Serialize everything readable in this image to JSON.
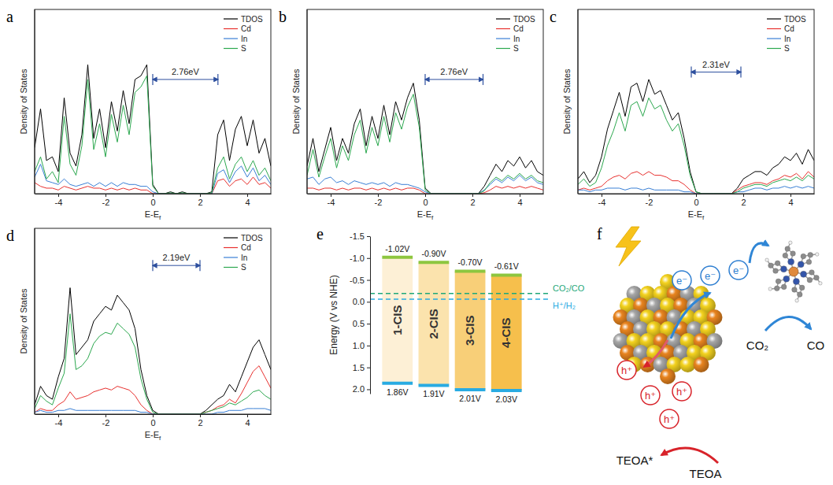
{
  "chart_data": [
    {
      "type": "line",
      "panel": "a",
      "xlabel": "E-Ef",
      "ylabel": "Density of States",
      "x": [
        -5,
        -4.75,
        -4.5,
        -4.25,
        -4,
        -3.75,
        -3.5,
        -3.25,
        -3,
        -2.75,
        -2.5,
        -2.25,
        -2,
        -1.75,
        -1.5,
        -1.25,
        -1,
        -0.75,
        -0.5,
        -0.25,
        0,
        0.25,
        0.5,
        0.75,
        1,
        1.25,
        1.5,
        1.75,
        2,
        2.25,
        2.5,
        2.75,
        3,
        3.25,
        3.5,
        3.75,
        4,
        4.25,
        4.5,
        4.75,
        5
      ],
      "xlim": [
        -5,
        5
      ],
      "xticks": [
        -4,
        -2,
        0,
        2,
        4
      ],
      "ylim": [
        0,
        10
      ],
      "tick_labels": "x",
      "legend": "upper right",
      "series": [
        {
          "name": "TDOS",
          "color": "#000000",
          "values": [
            2.5,
            4.6,
            1.8,
            2.0,
            1.2,
            5.2,
            2.2,
            1.5,
            3.2,
            7.0,
            3.0,
            4.6,
            2.5,
            5.0,
            3.4,
            5.6,
            3.8,
            6.2,
            6.4,
            7.0,
            0.5,
            0,
            0,
            0.1,
            0,
            0.1,
            0,
            0,
            0,
            0,
            0.1,
            3.2,
            4.0,
            1.8,
            3.5,
            4.2,
            2.6,
            4.0,
            2.2,
            3.0,
            1.5
          ]
        },
        {
          "name": "Cd",
          "color": "#e8312f",
          "values": [
            0.6,
            0.4,
            0.3,
            0.3,
            0.2,
            0.4,
            0.3,
            0.2,
            0.3,
            0.4,
            0.3,
            0.3,
            0.2,
            0.3,
            0.2,
            0.3,
            0.2,
            0.3,
            0.2,
            0.2,
            0,
            0,
            0,
            0,
            0,
            0,
            0,
            0,
            0,
            0,
            0,
            0.7,
            0.8,
            0.4,
            0.7,
            0.8,
            0.5,
            0.9,
            0.5,
            0.6,
            0.3
          ]
        },
        {
          "name": "In",
          "color": "#3a7fd5",
          "values": [
            0.9,
            1.6,
            0.7,
            0.6,
            0.5,
            0.8,
            0.5,
            0.4,
            0.5,
            0.6,
            0.4,
            0.6,
            0.4,
            0.6,
            0.4,
            0.6,
            0.5,
            0.5,
            0.4,
            0.4,
            0.1,
            0,
            0,
            0,
            0,
            0,
            0,
            0,
            0,
            0,
            0,
            1.1,
            1.3,
            0.6,
            1.2,
            1.5,
            0.9,
            1.4,
            0.7,
            1.0,
            0.5
          ]
        },
        {
          "name": "S",
          "color": "#2ca84f",
          "values": [
            1.2,
            2.0,
            0.8,
            1.2,
            0.6,
            4.2,
            1.6,
            1.0,
            2.6,
            6.2,
            2.4,
            3.8,
            2.0,
            4.3,
            2.8,
            4.8,
            3.2,
            5.5,
            5.8,
            6.4,
            0.4,
            0,
            0,
            0.05,
            0,
            0.05,
            0,
            0,
            0,
            0,
            0.05,
            1.4,
            2.0,
            0.8,
            1.6,
            2.0,
            1.2,
            1.8,
            1.0,
            1.4,
            0.7
          ]
        }
      ],
      "annotations": [
        {
          "text": "2.76eV",
          "start": 0,
          "end": 2.76,
          "y": 6.2
        }
      ]
    },
    {
      "type": "line",
      "panel": "b",
      "xlabel": "E-Ef",
      "ylabel": "Density of States",
      "x": [
        -5,
        -4.75,
        -4.5,
        -4.25,
        -4,
        -3.75,
        -3.5,
        -3.25,
        -3,
        -2.75,
        -2.5,
        -2.25,
        -2,
        -1.75,
        -1.5,
        -1.25,
        -1,
        -0.75,
        -0.5,
        -0.25,
        0,
        0.25,
        0.5,
        0.75,
        1,
        1.25,
        1.5,
        1.75,
        2,
        2.25,
        2.5,
        2.75,
        3,
        3.25,
        3.5,
        3.75,
        4,
        4.25,
        4.5,
        4.75,
        5
      ],
      "xlim": [
        -5,
        5
      ],
      "xticks": [
        -4,
        -2,
        0,
        2,
        4
      ],
      "ylim": [
        0,
        10
      ],
      "tick_labels": "x",
      "legend": "upper right",
      "series": [
        {
          "name": "TDOS",
          "color": "#000000",
          "values": [
            1.5,
            3.0,
            1.2,
            2.4,
            3.6,
            1.8,
            3.0,
            2.2,
            3.8,
            4.6,
            2.6,
            4.2,
            3.0,
            4.8,
            3.2,
            5.0,
            4.0,
            5.2,
            6.0,
            4.0,
            0.3,
            0,
            0,
            0,
            0,
            0,
            0,
            0,
            0,
            0,
            0.4,
            1.0,
            1.6,
            1.2,
            1.8,
            1.5,
            2.0,
            1.4,
            1.8,
            1.2,
            1.0
          ]
        },
        {
          "name": "Cd",
          "color": "#e8312f",
          "values": [
            0.3,
            0.3,
            0.2,
            0.3,
            0.3,
            0.2,
            0.3,
            0.2,
            0.3,
            0.3,
            0.2,
            0.3,
            0.2,
            0.3,
            0.2,
            0.3,
            0.2,
            0.3,
            0.3,
            0.2,
            0,
            0,
            0,
            0,
            0,
            0,
            0,
            0,
            0,
            0,
            0.05,
            0.2,
            0.4,
            0.3,
            0.4,
            0.3,
            0.4,
            0.3,
            0.4,
            0.3,
            0.2
          ]
        },
        {
          "name": "In",
          "color": "#3a7fd5",
          "values": [
            0.8,
            0.9,
            0.5,
            0.8,
            0.9,
            0.6,
            0.7,
            0.5,
            0.7,
            0.6,
            0.5,
            0.6,
            0.5,
            0.6,
            0.4,
            0.6,
            0.5,
            0.5,
            0.4,
            0.3,
            0.1,
            0,
            0,
            0,
            0,
            0,
            0,
            0,
            0,
            0,
            0.2,
            0.5,
            0.8,
            0.6,
            0.9,
            0.7,
            1.0,
            0.7,
            0.9,
            0.6,
            0.5
          ]
        },
        {
          "name": "S",
          "color": "#2ca84f",
          "values": [
            1.0,
            2.4,
            0.9,
            2.0,
            3.0,
            1.4,
            2.6,
            1.8,
            3.2,
            4.0,
            2.2,
            3.6,
            2.6,
            4.2,
            2.8,
            4.4,
            3.5,
            4.7,
            5.4,
            3.6,
            0.2,
            0,
            0,
            0,
            0,
            0,
            0,
            0,
            0,
            0,
            0.15,
            0.6,
            0.9,
            0.7,
            1.0,
            0.8,
            1.1,
            0.8,
            1.0,
            0.7,
            0.6
          ]
        }
      ],
      "annotations": [
        {
          "text": "2.76eV",
          "start": 0,
          "end": 2.45,
          "y": 6.2
        }
      ]
    },
    {
      "type": "line",
      "panel": "c",
      "xlabel": "E-Ef",
      "ylabel": "Density of States",
      "x": [
        -5,
        -4.75,
        -4.5,
        -4.25,
        -4,
        -3.75,
        -3.5,
        -3.25,
        -3,
        -2.75,
        -2.5,
        -2.25,
        -2,
        -1.75,
        -1.5,
        -1.25,
        -1,
        -0.75,
        -0.5,
        -0.25,
        0,
        0.25,
        0.5,
        0.75,
        1,
        1.25,
        1.5,
        1.75,
        2,
        2.25,
        2.5,
        2.75,
        3,
        3.25,
        3.5,
        3.75,
        4,
        4.25,
        4.5,
        4.75,
        5
      ],
      "xlim": [
        -5,
        5
      ],
      "xticks": [
        -4,
        -2,
        0,
        2,
        4
      ],
      "ylim": [
        0,
        10
      ],
      "tick_labels": "x",
      "legend": "upper right",
      "series": [
        {
          "name": "TDOS",
          "color": "#000000",
          "values": [
            0.8,
            1.2,
            0.6,
            1.0,
            2.0,
            3.5,
            4.5,
            5.5,
            4.2,
            5.8,
            6.0,
            5.0,
            6.2,
            5.4,
            5.6,
            4.8,
            4.0,
            4.4,
            3.0,
            1.2,
            0.1,
            0,
            0,
            0,
            0,
            0,
            0,
            0.3,
            0.8,
            1.0,
            1.2,
            1.2,
            1.0,
            1.4,
            1.6,
            2.0,
            1.8,
            2.2,
            1.6,
            2.4,
            1.8
          ]
        },
        {
          "name": "Cd",
          "color": "#e8312f",
          "values": [
            0.2,
            0.3,
            0.2,
            0.3,
            0.4,
            0.7,
            0.9,
            1.0,
            0.8,
            1.1,
            1.2,
            1.0,
            1.2,
            1.0,
            1.0,
            0.9,
            0.7,
            0.7,
            0.5,
            0.2,
            0,
            0,
            0,
            0,
            0,
            0,
            0,
            0.2,
            0.4,
            0.5,
            0.6,
            0.6,
            0.5,
            0.7,
            0.8,
            1.0,
            0.9,
            1.1,
            0.8,
            1.2,
            0.9
          ]
        },
        {
          "name": "In",
          "color": "#3a7fd5",
          "values": [
            0.2,
            0.2,
            0.1,
            0.2,
            0.2,
            0.3,
            0.3,
            0.3,
            0.2,
            0.3,
            0.3,
            0.2,
            0.3,
            0.2,
            0.2,
            0.2,
            0.2,
            0.2,
            0.1,
            0.1,
            0,
            0,
            0,
            0,
            0,
            0,
            0,
            0.1,
            0.1,
            0.2,
            0.3,
            0.3,
            0.2,
            0.3,
            0.3,
            0.4,
            0.3,
            0.4,
            0.3,
            0.4,
            0.3
          ]
        },
        {
          "name": "S",
          "color": "#2ca84f",
          "values": [
            0.5,
            0.8,
            0.4,
            0.6,
            1.4,
            2.6,
            3.4,
            4.4,
            3.4,
            4.8,
            5.0,
            4.2,
            5.2,
            4.6,
            4.8,
            4.0,
            3.4,
            3.8,
            2.6,
            1.0,
            0.1,
            0,
            0,
            0,
            0,
            0,
            0,
            0.1,
            0.3,
            0.4,
            0.5,
            0.5,
            0.4,
            0.6,
            0.7,
            0.8,
            0.7,
            0.9,
            0.7,
            1.0,
            0.8
          ]
        }
      ],
      "annotations": [
        {
          "text": "2.31eV",
          "start": -0.2,
          "end": 1.9,
          "y": 6.6
        }
      ]
    },
    {
      "type": "line",
      "panel": "d",
      "xlabel": "E-Ef",
      "ylabel": "Density of States",
      "x": [
        -5,
        -4.75,
        -4.5,
        -4.25,
        -4,
        -3.75,
        -3.5,
        -3.25,
        -3,
        -2.75,
        -2.5,
        -2.25,
        -2,
        -1.75,
        -1.5,
        -1.25,
        -1,
        -0.75,
        -0.5,
        -0.25,
        0,
        0.25,
        0.5,
        0.75,
        1,
        1.25,
        1.5,
        1.75,
        2,
        2.25,
        2.5,
        2.75,
        3,
        3.25,
        3.5,
        3.75,
        4,
        4.25,
        4.5,
        4.75,
        5
      ],
      "xlim": [
        -5,
        5
      ],
      "xticks": [
        -4,
        -2,
        0,
        2,
        4
      ],
      "ylim": [
        0,
        10
      ],
      "tick_labels": "x",
      "legend": "upper right",
      "series": [
        {
          "name": "TDOS",
          "color": "#000000",
          "values": [
            0.5,
            1.5,
            1.0,
            0.8,
            2.0,
            3.0,
            6.8,
            3.2,
            3.6,
            4.0,
            5.0,
            5.4,
            5.8,
            5.6,
            6.4,
            6.0,
            5.6,
            4.6,
            2.4,
            1.0,
            0.2,
            0,
            0,
            0,
            0,
            0,
            0,
            0,
            0,
            0.2,
            0.5,
            0.8,
            1.0,
            1.6,
            1.2,
            2.0,
            2.8,
            3.6,
            4.0,
            3.2,
            2.4
          ]
        },
        {
          "name": "Cd",
          "color": "#e8312f",
          "values": [
            0.1,
            0.3,
            0.2,
            0.2,
            0.5,
            0.7,
            1.2,
            0.8,
            0.9,
            1.0,
            1.2,
            1.3,
            1.4,
            1.3,
            1.5,
            1.4,
            1.3,
            1.0,
            0.5,
            0.2,
            0,
            0,
            0,
            0,
            0,
            0,
            0,
            0,
            0,
            0.1,
            0.2,
            0.4,
            0.5,
            0.8,
            0.6,
            1.1,
            1.7,
            2.3,
            2.6,
            2.0,
            1.4
          ]
        },
        {
          "name": "In",
          "color": "#3a7fd5",
          "values": [
            0.1,
            0.2,
            0.1,
            0.1,
            0.2,
            0.2,
            0.3,
            0.2,
            0.2,
            0.2,
            0.2,
            0.2,
            0.2,
            0.2,
            0.2,
            0.2,
            0.2,
            0.2,
            0.1,
            0.1,
            0,
            0,
            0,
            0,
            0,
            0,
            0,
            0,
            0,
            0,
            0,
            0.1,
            0.1,
            0.2,
            0.2,
            0.2,
            0.3,
            0.3,
            0.3,
            0.3,
            0.2
          ]
        },
        {
          "name": "S",
          "color": "#2ca84f",
          "values": [
            0.3,
            1.0,
            0.7,
            0.5,
            1.4,
            2.2,
            5.4,
            2.4,
            2.6,
            3.0,
            3.8,
            4.2,
            4.4,
            4.3,
            4.9,
            4.6,
            4.3,
            3.6,
            1.9,
            0.8,
            0.1,
            0,
            0,
            0,
            0,
            0,
            0,
            0,
            0,
            0.1,
            0.2,
            0.3,
            0.4,
            0.6,
            0.5,
            0.7,
            0.9,
            1.2,
            1.3,
            1.0,
            0.8
          ]
        }
      ],
      "annotations": [
        {
          "text": "2.19eV",
          "start": 0,
          "end": 2.0,
          "y": 8.0
        }
      ]
    },
    {
      "type": "band",
      "panel": "e",
      "ylabel": "Energy (V vs NHE)",
      "categories": [
        "1-CIS",
        "2-CIS",
        "3-CIS",
        "4-CIS"
      ],
      "colors": [
        "#fdf0d6",
        "#fbe3ad",
        "#f8cf78",
        "#f6bf4c"
      ],
      "series": [
        {
          "color": "#8dc63f",
          "values": [
            -1.02,
            -0.9,
            -0.7,
            -0.61
          ],
          "value_labels": [
            "-1.02V",
            "-0.90V",
            "-0.70V",
            "-0.61V"
          ]
        },
        {
          "color": "#29abe2",
          "values": [
            1.86,
            1.91,
            2.01,
            2.03
          ],
          "value_labels": [
            "1.86V",
            "1.91V",
            "2.01V",
            "2.03V"
          ]
        }
      ],
      "ylim": [
        -1.5,
        2.1
      ],
      "yticks": [
        -1.5,
        {
          "value": -1,
          "label": "-1.0"
        },
        -0.5,
        {
          "value": 0,
          "label": "0.0"
        },
        0.5,
        {
          "value": 1,
          "label": "1.0"
        },
        1.5,
        {
          "value": 2,
          "label": "2.0"
        }
      ],
      "reference_lines": [
        {
          "label": "CO₂/CO",
          "value": -0.19,
          "color": "#1fa87a"
        },
        {
          "label": "H⁺/H₂",
          "value": -0.06,
          "color": "#29abe2"
        }
      ],
      "data_labels": true
    }
  ],
  "diagram": {
    "panel": "f",
    "electrons": [
      "e⁻",
      "e⁻",
      "e⁻"
    ],
    "holes": [
      "h⁺",
      "h⁺",
      "h⁺",
      "h⁺"
    ],
    "reactant": "CO₂",
    "product": "CO",
    "donor": "TEOA",
    "oxidized_donor": "TEOA*"
  }
}
